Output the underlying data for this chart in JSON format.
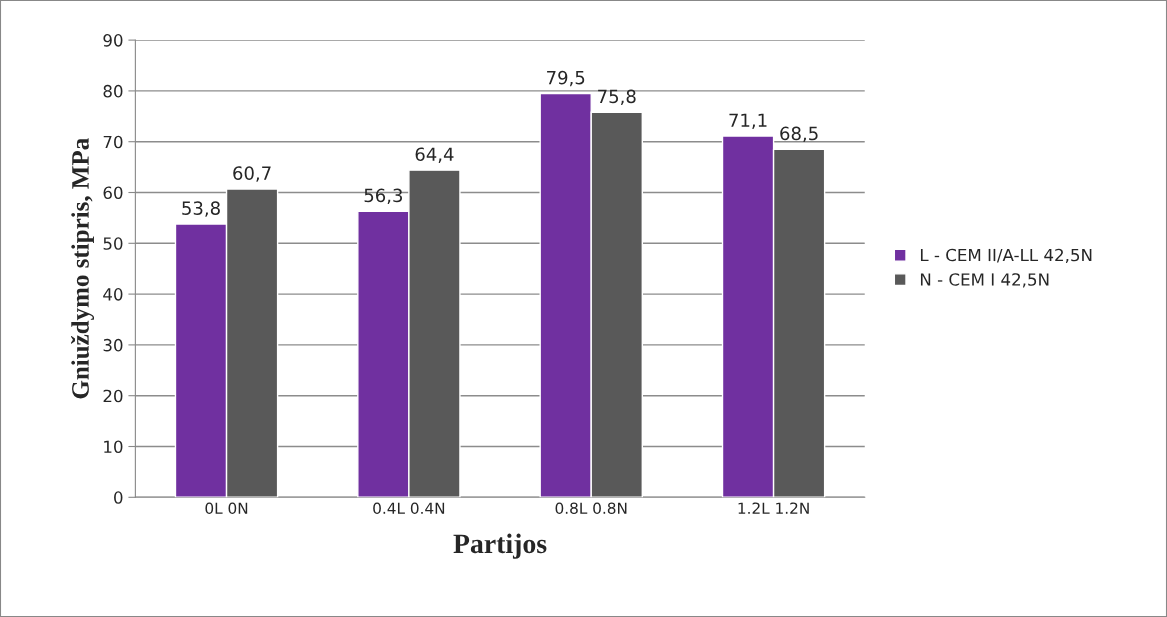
{
  "chart_data": {
    "type": "bar",
    "xlabel": "Partijos",
    "ylabel": "Gniuždymo stipris, MPa",
    "categories": [
      "0L 0N",
      "0.4L 0.4N",
      "0.8L 0.8N",
      "1.2L 1.2N"
    ],
    "series": [
      {
        "name": "L - CEM II/A-LL 42,5N",
        "color": "#7030a0",
        "values": [
          53.8,
          56.3,
          79.5,
          71.1
        ],
        "value_labels": [
          "53,8",
          "56,3",
          "79,5",
          "71,1"
        ]
      },
      {
        "name": "N - CEM I 42,5N",
        "color": "#595959",
        "values": [
          60.7,
          64.4,
          75.8,
          68.5
        ],
        "value_labels": [
          "60,7",
          "64,4",
          "75,8",
          "68,5"
        ]
      }
    ],
    "ylim": [
      0,
      90
    ],
    "yticks": [
      0,
      10,
      20,
      30,
      40,
      50,
      60,
      70,
      80,
      90
    ],
    "grid": "y",
    "legend": "right"
  }
}
